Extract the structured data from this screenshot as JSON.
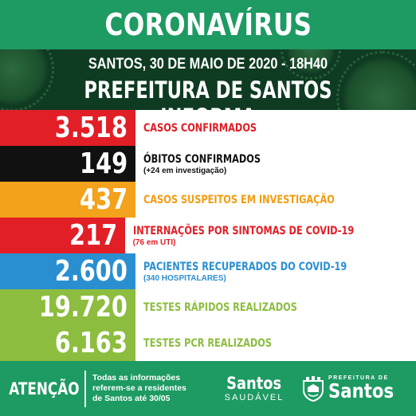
{
  "header": {
    "title": "CORONAVÍRUS",
    "date_line": "SANTOS, 30 DE MAIO DE 2020 - 18H40",
    "subtitle": "PREFEITURA DE SANTOS INFORMA"
  },
  "stats": [
    {
      "value": "3.518",
      "label": "CASOS CONFIRMADOS",
      "note": "",
      "color": "#e21e26"
    },
    {
      "value": "149",
      "label": "ÓBITOS CONFIRMADOS",
      "note": "(+24 em investigação)",
      "color": "#111111"
    },
    {
      "value": "437",
      "label": "CASOS SUSPEITOS EM INVESTIGAÇÃO",
      "note": "",
      "color": "#f3a21c"
    },
    {
      "value": "217",
      "label": "INTERNAÇÕES POR SINTOMAS DE COVID-19",
      "note": "(76 em UTI)",
      "color": "#e21e26"
    },
    {
      "value": "2.600",
      "label": "PACIENTES RECUPERADOS DO COVID-19",
      "note": "(340 HOSPITALARES)",
      "color": "#2a8fd1"
    },
    {
      "value": "19.720",
      "label": "TESTES RÁPIDOS REALIZADOS",
      "note": "",
      "color": "#8cbd3f"
    },
    {
      "value": "6.163",
      "label": "TESTES PCR REALIZADOS",
      "note": "",
      "color": "#8cbd3f"
    }
  ],
  "footer": {
    "attention": "ATENÇÃO",
    "note_lines": [
      "Todas as informações",
      "referem-se a residentes",
      "de Santos até 30/05"
    ],
    "logo_santos_saudavel": {
      "word": "Santos",
      "sub": "SAUDÁVEL"
    },
    "logo_prefeitura": {
      "small": "PREFEITURA DE",
      "big": "Santos"
    }
  },
  "colors": {
    "brand_green": "#1e9a63",
    "dark_green": "#0f3b22"
  }
}
